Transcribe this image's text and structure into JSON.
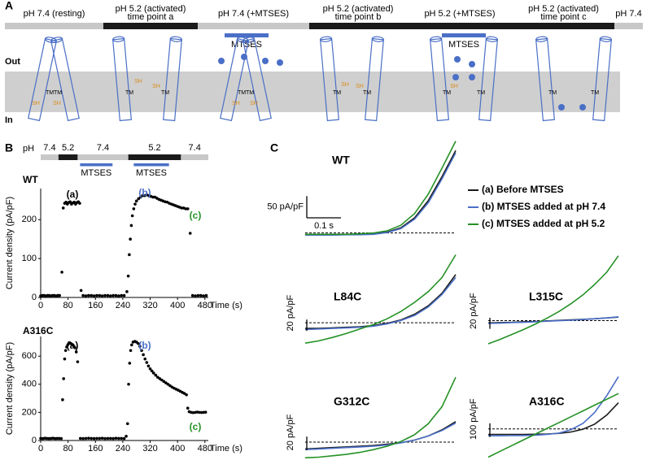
{
  "panel_a": {
    "label": "A",
    "states": [
      [
        "pH 7.4 (resting)"
      ],
      [
        "pH 5.2 (activated)",
        "time point a"
      ],
      [
        "pH 7.4 (+MTSES)"
      ],
      [
        "pH 5.2 (activated)",
        "time point b"
      ],
      [
        "pH 5.2 (+MTSES)"
      ],
      [
        "pH 5.2 (activated)",
        "time point c"
      ],
      [
        "pH 7.4"
      ]
    ],
    "state_colors": [
      "#c8c8c8",
      "#1a1a1a",
      "#c8c8c8",
      "#1a1a1a",
      "#1a1a1a",
      "#1a1a1a",
      "#c8c8c8"
    ],
    "mtses_label": "MTSES",
    "out_label": "Out",
    "in_label": "In",
    "tm_label": "TM",
    "sh_label": "SH"
  },
  "panel_b": {
    "label": "B",
    "ph_label": "pH",
    "mtses_label": "MTSES",
    "ph_protocol": [
      {
        "label": "7.4",
        "start": 0,
        "end": 52,
        "color": "#c8c8c8"
      },
      {
        "label": "5.2",
        "start": 52,
        "end": 108,
        "color": "#1a1a1a"
      },
      {
        "label": "7.4",
        "start": 108,
        "end": 256,
        "color": "#c8c8c8"
      },
      {
        "label": "5.2",
        "start": 256,
        "end": 410,
        "color": "#1a1a1a"
      },
      {
        "label": "7.4",
        "start": 410,
        "end": 490,
        "color": "#c8c8c8"
      }
    ],
    "mtses": [
      [
        115,
        210
      ],
      [
        272,
        375
      ]
    ]
  },
  "panel_c": {
    "label": "C",
    "legend": [
      {
        "name": "(a) Before MTSES",
        "color": "#1a1a1a"
      },
      {
        "name": "(b) MTSES added at pH 7.4",
        "color": "#4a6fc7"
      },
      {
        "name": "(c) MTSES added at pH 5.2",
        "color": "#249124"
      }
    ]
  },
  "chart_data": [
    {
      "type": "scatter",
      "title": "WT",
      "xlabel": "Time (s)",
      "ylabel": "Current density (pA/pF)",
      "color": "#000000",
      "xlim": [
        0,
        490
      ],
      "ylim": [
        0,
        280
      ],
      "xticks": [
        0,
        80,
        160,
        240,
        320,
        400,
        480
      ],
      "yticks": [
        0,
        100,
        200
      ],
      "x": [
        0,
        5,
        10,
        15,
        20,
        25,
        30,
        35,
        40,
        45,
        50,
        55,
        62,
        66,
        70,
        74,
        78,
        82,
        86,
        90,
        94,
        98,
        102,
        106,
        110,
        114,
        118,
        124,
        132,
        140,
        148,
        156,
        164,
        172,
        180,
        188,
        196,
        204,
        212,
        220,
        228,
        236,
        244,
        252,
        256,
        259,
        262,
        265,
        268,
        272,
        276,
        280,
        286,
        292,
        298,
        304,
        310,
        316,
        322,
        328,
        334,
        340,
        346,
        352,
        358,
        364,
        370,
        376,
        382,
        388,
        394,
        400,
        406,
        412,
        418,
        424,
        430,
        437,
        444,
        452,
        460,
        468,
        476,
        484
      ],
      "values": [
        4,
        5,
        5,
        4,
        5,
        5,
        4,
        5,
        5,
        4,
        5,
        5,
        65,
        230,
        242,
        245,
        240,
        244,
        246,
        240,
        243,
        245,
        240,
        244,
        246,
        242,
        18,
        5,
        4,
        5,
        5,
        4,
        5,
        5,
        4,
        5,
        5,
        4,
        5,
        5,
        4,
        5,
        5,
        15,
        55,
        110,
        150,
        185,
        210,
        228,
        240,
        248,
        254,
        258,
        262,
        262,
        264,
        262,
        260,
        258,
        258,
        255,
        252,
        250,
        248,
        246,
        245,
        242,
        240,
        238,
        236,
        234,
        232,
        230,
        230,
        228,
        228,
        165,
        5,
        4,
        5,
        5,
        4,
        5
      ],
      "annotations": [
        {
          "text": "(a)",
          "color": "#000000"
        },
        {
          "text": "(b)",
          "color": "#4a6fc7"
        },
        {
          "text": "(c)",
          "color": "#249124"
        }
      ]
    },
    {
      "type": "scatter",
      "title": "A316C",
      "xlabel": "Time (s)",
      "ylabel": "Current density (pA/pF)",
      "color": "#000000",
      "xlim": [
        0,
        490
      ],
      "ylim": [
        0,
        740
      ],
      "xticks": [
        0,
        80,
        160,
        240,
        320,
        400,
        480
      ],
      "yticks": [
        0,
        200,
        400,
        600
      ],
      "x": [
        0,
        6,
        12,
        18,
        24,
        30,
        36,
        42,
        48,
        54,
        60,
        64,
        67,
        70,
        73,
        76,
        79,
        82,
        85,
        88,
        91,
        94,
        97,
        100,
        104,
        108,
        116,
        124,
        132,
        140,
        148,
        156,
        164,
        172,
        180,
        188,
        196,
        204,
        212,
        220,
        228,
        236,
        244,
        250,
        254,
        257,
        260,
        263,
        266,
        270,
        275,
        280,
        285,
        290,
        295,
        300,
        305,
        310,
        315,
        320,
        325,
        330,
        336,
        342,
        348,
        354,
        360,
        366,
        372,
        378,
        384,
        390,
        396,
        402,
        408,
        414,
        420,
        426,
        430,
        434,
        440,
        446,
        452,
        458,
        464,
        470,
        476,
        482
      ],
      "values": [
        15,
        14,
        16,
        15,
        14,
        15,
        16,
        14,
        15,
        15,
        14,
        290,
        440,
        580,
        640,
        665,
        680,
        690,
        695,
        690,
        685,
        680,
        670,
        660,
        630,
        560,
        15,
        14,
        15,
        16,
        15,
        14,
        15,
        15,
        16,
        14,
        15,
        15,
        14,
        16,
        15,
        15,
        14,
        30,
        120,
        400,
        550,
        640,
        680,
        700,
        705,
        700,
        690,
        670,
        640,
        610,
        580,
        555,
        530,
        510,
        495,
        480,
        465,
        450,
        440,
        430,
        420,
        410,
        400,
        390,
        380,
        372,
        365,
        358,
        350,
        342,
        335,
        325,
        230,
        205,
        200,
        198,
        200,
        202,
        200,
        199,
        200,
        201
      ],
      "annotations": [
        {
          "text": "(a)",
          "color": "#000000"
        },
        {
          "text": "(b)",
          "color": "#4a6fc7"
        },
        {
          "text": "(c)",
          "color": "#249124"
        }
      ]
    },
    {
      "type": "line",
      "title": "WT",
      "xlim": [
        0,
        0.44
      ],
      "ylim": [
        -10,
        215
      ],
      "x": [
        0,
        0.04,
        0.08,
        0.12,
        0.16,
        0.2,
        0.24,
        0.28,
        0.32,
        0.36,
        0.4,
        0.44
      ],
      "scalebar": {
        "y": 50,
        "y_label": "50 pA/pF",
        "x": 0.1,
        "x_label": "0.1 s"
      },
      "series": [
        {
          "color": "#1a1a1a",
          "values": [
            -3,
            -3,
            -3,
            -3,
            -3,
            -2,
            2,
            12,
            35,
            75,
            130,
            190
          ]
        },
        {
          "color": "#4a6fc7",
          "values": [
            -5,
            -5,
            -5,
            -4,
            -4,
            -3,
            1,
            10,
            32,
            70,
            125,
            185
          ]
        },
        {
          "color": "#249124",
          "values": [
            -3,
            -3,
            -3,
            -3,
            -2,
            0,
            5,
            18,
            45,
            90,
            150,
            212
          ]
        }
      ]
    },
    {
      "type": "line",
      "title": "L84C",
      "xlim": [
        0,
        0.44
      ],
      "ylim": [
        -40,
        125
      ],
      "x": [
        0,
        0.04,
        0.08,
        0.12,
        0.16,
        0.2,
        0.24,
        0.28,
        0.32,
        0.36,
        0.4,
        0.44
      ],
      "scalebar": {
        "y": 20,
        "y_label": "20 pA/pF"
      },
      "series": [
        {
          "color": "#1a1a1a",
          "values": [
            -10,
            -10,
            -9,
            -8,
            -7,
            -5,
            -1,
            5,
            15,
            30,
            52,
            85
          ]
        },
        {
          "color": "#4a6fc7",
          "values": [
            -12,
            -11,
            -10,
            -9,
            -8,
            -6,
            -2,
            4,
            13,
            28,
            50,
            80
          ]
        },
        {
          "color": "#249124",
          "values": [
            -36,
            -32,
            -26,
            -19,
            -11,
            -3,
            7,
            20,
            36,
            55,
            80,
            120
          ]
        }
      ]
    },
    {
      "type": "line",
      "title": "L315C",
      "xlim": [
        0,
        0.44
      ],
      "ylim": [
        -45,
        125
      ],
      "x": [
        0,
        0.04,
        0.08,
        0.12,
        0.16,
        0.2,
        0.24,
        0.28,
        0.32,
        0.36,
        0.4,
        0.44
      ],
      "scalebar": {
        "y": 20,
        "y_label": "20 pA/pF"
      },
      "series": [
        {
          "color": "#1a1a1a",
          "values": [
            -4,
            -3.5,
            -3,
            -2,
            -1.5,
            -0.5,
            0.5,
            1.5,
            2.5,
            3.5,
            5,
            6.5
          ]
        },
        {
          "color": "#4a6fc7",
          "values": [
            -5,
            -4.5,
            -3.5,
            -3,
            -2,
            -1,
            0,
            1,
            2,
            3.5,
            5,
            7
          ]
        },
        {
          "color": "#249124",
          "values": [
            -42,
            -34,
            -25,
            -16,
            -6,
            5,
            17,
            31,
            47,
            66,
            88,
            118
          ]
        }
      ]
    },
    {
      "type": "line",
      "title": "G312C",
      "xlim": [
        0,
        0.44
      ],
      "ylim": [
        -25,
        100
      ],
      "x": [
        0,
        0.04,
        0.08,
        0.12,
        0.16,
        0.2,
        0.24,
        0.28,
        0.32,
        0.36,
        0.4,
        0.44
      ],
      "scalebar": {
        "y": 20,
        "y_label": "20 pA/pF"
      },
      "series": [
        {
          "color": "#1a1a1a",
          "values": [
            -10,
            -9,
            -8,
            -7,
            -6,
            -5,
            -3,
            -1,
            3,
            9,
            18,
            30
          ]
        },
        {
          "color": "#4a6fc7",
          "values": [
            -11,
            -10,
            -9,
            -8,
            -7,
            -6,
            -4,
            -1,
            3,
            9,
            17,
            28
          ]
        },
        {
          "color": "#249124",
          "values": [
            -23,
            -22,
            -20,
            -18,
            -15,
            -11,
            -6,
            1,
            11,
            27,
            52,
            95
          ]
        }
      ]
    },
    {
      "type": "line",
      "title": "A316C",
      "xlim": [
        0,
        0.44
      ],
      "ylim": [
        -220,
        400
      ],
      "x": [
        0,
        0.04,
        0.08,
        0.12,
        0.16,
        0.2,
        0.24,
        0.28,
        0.32,
        0.36,
        0.4,
        0.44
      ],
      "scalebar": {
        "y": 100,
        "y_label": "100 pA/pF"
      },
      "series": [
        {
          "color": "#1a1a1a",
          "values": [
            -40,
            -40,
            -40,
            -40,
            -39,
            -37,
            -32,
            -22,
            -2,
            35,
            100,
            190
          ]
        },
        {
          "color": "#4a6fc7",
          "values": [
            -50,
            -50,
            -49,
            -48,
            -45,
            -40,
            -30,
            -5,
            40,
            120,
            240,
            380
          ]
        },
        {
          "color": "#249124",
          "values": [
            -205,
            -163,
            -121,
            -79,
            -37,
            5,
            47,
            89,
            131,
            173,
            215,
            257
          ]
        }
      ]
    }
  ]
}
